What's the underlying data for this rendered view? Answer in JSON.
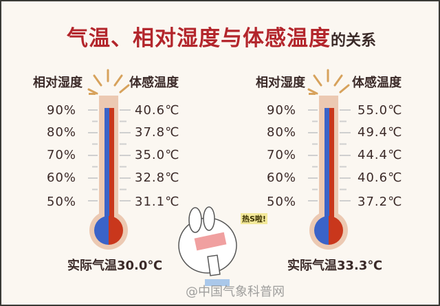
{
  "title": {
    "main": "气温、相对湿度与体感温度",
    "suffix": "的关系"
  },
  "headers": {
    "humidity": "相对湿度",
    "feels_like": "体感温度"
  },
  "humidity_levels": [
    "90%",
    "80%",
    "70%",
    "60%",
    "50%"
  ],
  "thermometers": [
    {
      "feels_like": [
        "40.6℃",
        "37.8℃",
        "35.0℃",
        "32.8℃",
        "31.1℃"
      ],
      "actual_label": "实际气温30.0℃"
    },
    {
      "feels_like": [
        "55.0℃",
        "49.4℃",
        "44.4℃",
        "40.6℃",
        "37.2℃"
      ],
      "actual_label": "实际气温33.3℃"
    }
  ],
  "cartoon_text": "热S啦!",
  "watermark": "@中国气象科普网",
  "colors": {
    "title": "#b3262c",
    "humidity_column": "#3a63c8",
    "temperature_column": "#c9371c",
    "tube": "#ecc9b2",
    "background": "#fbf7f1"
  }
}
